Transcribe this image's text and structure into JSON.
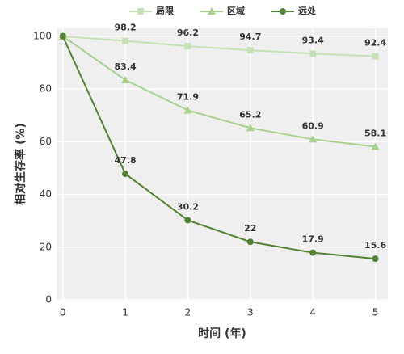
{
  "chart_data": {
    "type": "line",
    "x_label": "时间 (年)",
    "y_label": "相对生存率 (%)",
    "x": [
      0,
      1,
      2,
      3,
      4,
      5
    ],
    "series": [
      {
        "name": "局限",
        "color": "#c5e0b4",
        "marker": "square",
        "values": [
          100,
          98.2,
          96.2,
          94.7,
          93.4,
          92.4
        ]
      },
      {
        "name": "区域",
        "color": "#a9d18e",
        "marker": "triangle",
        "values": [
          100,
          83.4,
          71.9,
          65.2,
          60.9,
          58.1
        ]
      },
      {
        "name": "远处",
        "color": "#548235",
        "marker": "circle",
        "values": [
          100,
          47.8,
          30.2,
          22.0,
          17.9,
          15.6
        ]
      }
    ],
    "value_labels_from": 1,
    "xlim": [
      -0.1,
      5.2
    ],
    "ylim": [
      0,
      103
    ],
    "xticks": [
      0,
      1,
      2,
      3,
      4,
      5
    ],
    "yticks": [
      0,
      20,
      40,
      60,
      80,
      100
    ],
    "grid": true,
    "legend": "top"
  }
}
